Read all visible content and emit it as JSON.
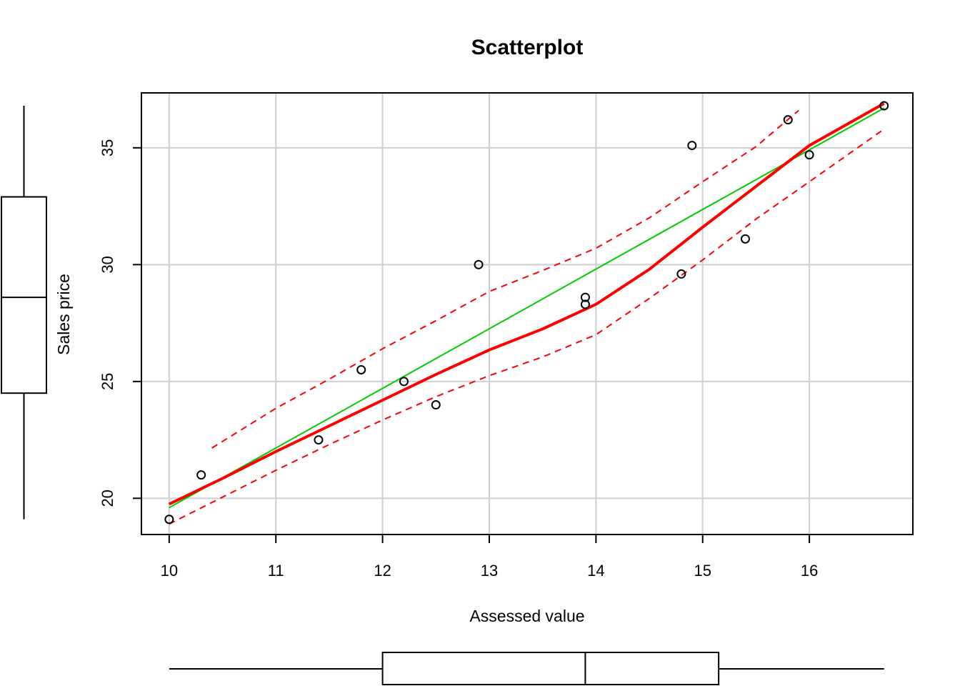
{
  "chart_data": {
    "type": "scatter",
    "title": "Scatterplot",
    "xlabel": "Assessed value",
    "ylabel": "Sales price",
    "xlim": [
      9.74,
      16.97
    ],
    "ylim": [
      18.45,
      37.35
    ],
    "x_ticks": [
      10,
      11,
      12,
      13,
      14,
      15,
      16
    ],
    "y_ticks": [
      20,
      25,
      30,
      35
    ],
    "grid": true,
    "points": [
      {
        "x": 10.0,
        "y": 19.1
      },
      {
        "x": 10.3,
        "y": 21.0
      },
      {
        "x": 11.4,
        "y": 22.5
      },
      {
        "x": 11.8,
        "y": 25.5
      },
      {
        "x": 12.2,
        "y": 25.0
      },
      {
        "x": 12.5,
        "y": 24.0
      },
      {
        "x": 12.9,
        "y": 30.0
      },
      {
        "x": 13.9,
        "y": 28.6
      },
      {
        "x": 13.9,
        "y": 28.3
      },
      {
        "x": 14.8,
        "y": 29.6
      },
      {
        "x": 14.9,
        "y": 35.1
      },
      {
        "x": 15.4,
        "y": 31.1
      },
      {
        "x": 15.8,
        "y": 36.2
      },
      {
        "x": 16.0,
        "y": 34.7
      },
      {
        "x": 16.7,
        "y": 36.8
      }
    ],
    "regression_line": {
      "color": "#00cc00",
      "points": [
        [
          10.0,
          19.6
        ],
        [
          16.7,
          36.7
        ]
      ]
    },
    "smooth_line": {
      "color": "#ff0000",
      "points": [
        [
          10.0,
          19.75
        ],
        [
          10.5,
          20.85
        ],
        [
          11.0,
          22.0
        ],
        [
          11.5,
          23.1
        ],
        [
          12.0,
          24.2
        ],
        [
          12.5,
          25.3
        ],
        [
          13.0,
          26.35
        ],
        [
          13.5,
          27.25
        ],
        [
          14.0,
          28.3
        ],
        [
          14.5,
          29.8
        ],
        [
          15.0,
          31.6
        ],
        [
          15.5,
          33.35
        ],
        [
          16.0,
          35.1
        ],
        [
          16.7,
          36.9
        ]
      ]
    },
    "smooth_upper": {
      "color": "#ff0000",
      "points": [
        [
          10.4,
          22.15
        ],
        [
          11.0,
          23.85
        ],
        [
          11.5,
          25.1
        ],
        [
          12.0,
          26.4
        ],
        [
          12.5,
          27.6
        ],
        [
          13.0,
          28.85
        ],
        [
          13.5,
          29.75
        ],
        [
          14.0,
          30.7
        ],
        [
          14.5,
          32.0
        ],
        [
          15.0,
          33.55
        ],
        [
          15.5,
          35.05
        ],
        [
          15.9,
          36.6
        ]
      ]
    },
    "smooth_lower": {
      "color": "#ff0000",
      "points": [
        [
          10.0,
          18.9
        ],
        [
          10.5,
          20.05
        ],
        [
          11.0,
          21.2
        ],
        [
          11.5,
          22.3
        ],
        [
          12.0,
          23.35
        ],
        [
          12.5,
          24.35
        ],
        [
          13.0,
          25.25
        ],
        [
          13.5,
          26.05
        ],
        [
          14.0,
          27.0
        ],
        [
          14.5,
          28.55
        ],
        [
          15.0,
          30.2
        ],
        [
          15.5,
          31.95
        ],
        [
          16.0,
          33.55
        ],
        [
          16.7,
          35.8
        ]
      ]
    },
    "x_boxplot": {
      "min": 10.0,
      "q1": 12.0,
      "median": 13.9,
      "q3": 15.15,
      "max": 16.7
    },
    "y_boxplot": {
      "min": 19.1,
      "q1": 24.5,
      "median": 28.6,
      "q3": 32.9,
      "max": 36.8
    }
  }
}
